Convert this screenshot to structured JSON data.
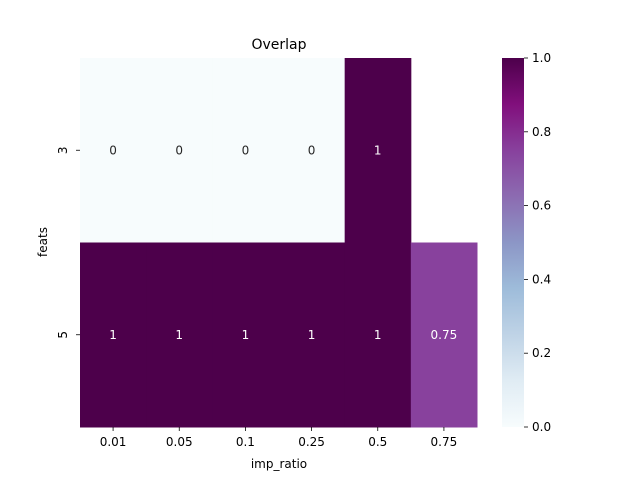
{
  "chart_data": {
    "type": "heatmap",
    "title": "Overlap",
    "xlabel": "imp_ratio",
    "ylabel": "feats",
    "x_categories": [
      "0.01",
      "0.05",
      "0.1",
      "0.25",
      "0.5",
      "0.75"
    ],
    "y_categories": [
      "3",
      "5"
    ],
    "values": [
      [
        0,
        0,
        0,
        0,
        1,
        null
      ],
      [
        1,
        1,
        1,
        1,
        1,
        0.75
      ]
    ],
    "annotations": [
      [
        "0",
        "0",
        "0",
        "0",
        "1",
        ""
      ],
      [
        "1",
        "1",
        "1",
        "1",
        "1",
        "0.75"
      ]
    ],
    "colorbar": {
      "min": 0,
      "max": 1,
      "ticks": [
        "0.0",
        "0.2",
        "0.4",
        "0.6",
        "0.8",
        "1.0"
      ],
      "colormap": "BuPu"
    }
  }
}
